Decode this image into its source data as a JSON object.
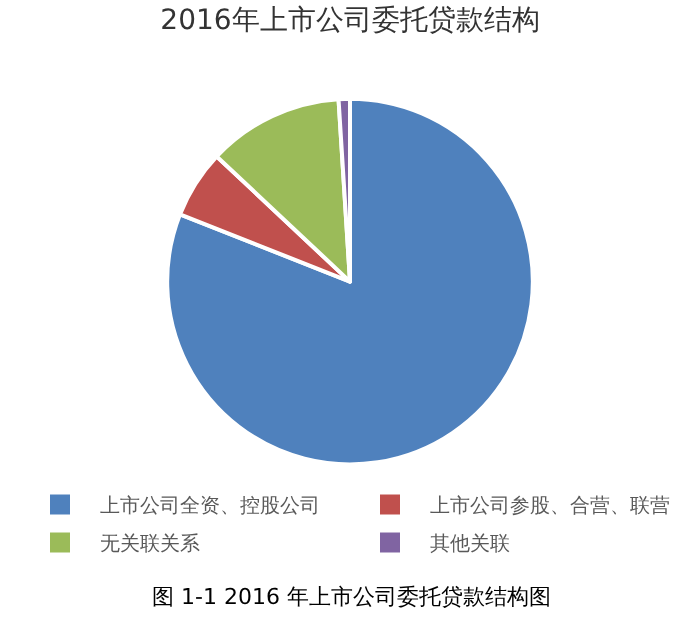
{
  "chart_data": {
    "type": "pie",
    "title": "2016年上市公司委托贷款结构",
    "categories": [
      "上市公司全资、控股公司",
      "上市公司参股、合营、联营",
      "无关联关系",
      "其他关联"
    ],
    "values": [
      81,
      6,
      12,
      1
    ],
    "colors": [
      "#4f81bd",
      "#c0504d",
      "#9bbb59",
      "#8064a2"
    ],
    "legend": "bottom",
    "annotations": [
      "图 1-1 2016 年上市公司委托贷款结构图"
    ]
  }
}
